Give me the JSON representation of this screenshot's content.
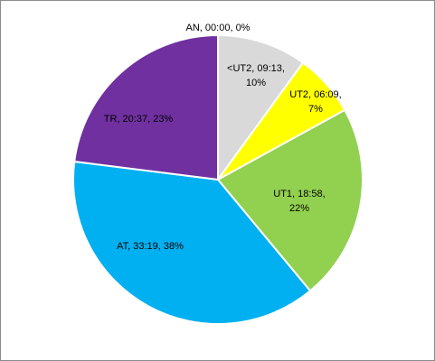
{
  "chart_data": {
    "type": "pie",
    "values": [
      0,
      10,
      7,
      22,
      38,
      23
    ],
    "value_labels": [
      "AN, 00:00, 0%",
      "<UT2, 09:13, 10%",
      "UT2, 06:09, 7%",
      "UT1, 18:58, 22%",
      "AT, 33:19, 38%",
      "TR, 20:37, 23%"
    ],
    "colors": [
      "#ffffff",
      "#d9d9d9",
      "#ffff00",
      "#92d050",
      "#00b0f0",
      "#7030a0"
    ]
  }
}
